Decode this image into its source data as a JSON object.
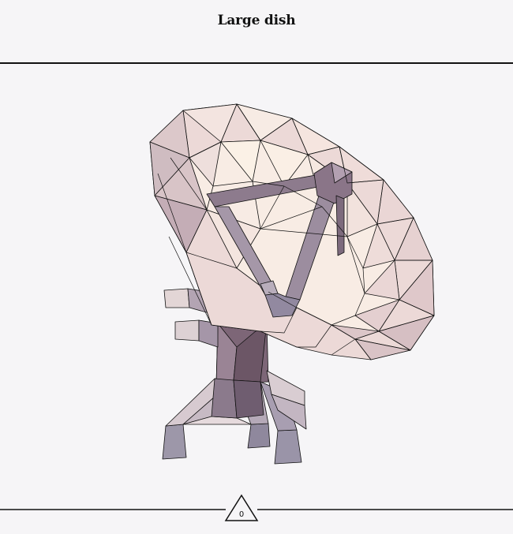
{
  "header": {
    "title": "Large dish"
  },
  "footer": {
    "page_number": "0"
  },
  "palette": {
    "background": "#f6f5f7",
    "dish_light": "#f6e6e1",
    "dish_mid": "#e8d2d1",
    "dish_dark": "#8a7380",
    "mount": "#9d97a9",
    "stroke": "#111111"
  }
}
